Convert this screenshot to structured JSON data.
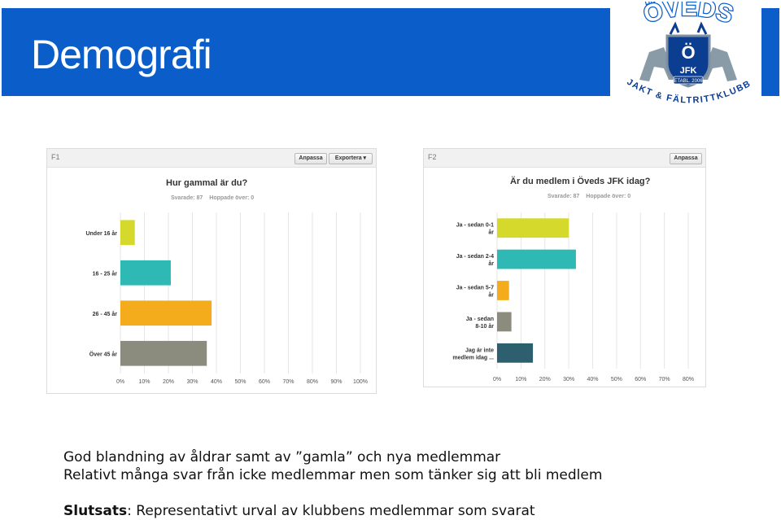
{
  "header": {
    "title": "Demografi"
  },
  "logo": {
    "top_text": "ÖVEDS",
    "shield_letters": "Ö",
    "shield_text": "JFK",
    "established": "ETABL. 2006",
    "ring_text": "JAKT & FÄLTRITTKLUBB"
  },
  "panels": [
    {
      "id": "F1",
      "customize_label": "Anpassa",
      "export_label": "Exportera ▾",
      "question": "Hur gammal är du?",
      "answered": "Svarade: 87",
      "skipped": "Hoppade över: 0"
    },
    {
      "id": "F2",
      "customize_label": "Anpassa",
      "question": "Är du medlem i Öveds JFK idag?",
      "answered": "Svarade: 87",
      "skipped": "Hoppade över: 0"
    }
  ],
  "chart_data": [
    {
      "type": "bar",
      "orientation": "horizontal",
      "title": "Hur gammal är du?",
      "categories": [
        "Under 16 år",
        "16 - 25 år",
        "26 - 45 år",
        "Över 45 år"
      ],
      "values": [
        6,
        21,
        38,
        36
      ],
      "unit": "%",
      "xlim": [
        0,
        100
      ],
      "ticks": [
        "0%",
        "10%",
        "20%",
        "30%",
        "40%",
        "50%",
        "60%",
        "70%",
        "80%",
        "90%",
        "100%"
      ],
      "colors": [
        "#d4d92b",
        "#2fb9b5",
        "#f4ac1c",
        "#8c8c7e"
      ],
      "grid": true
    },
    {
      "type": "bar",
      "orientation": "horizontal",
      "title": "Är du medlem i Öveds JFK idag?",
      "categories": [
        "Ja - sedan 0-1 år",
        "Ja - sedan 2-4 år",
        "Ja - sedan 5-7 år",
        "Ja - sedan 8-10 år",
        "Jag är inte medlem idag ..."
      ],
      "category_lines": [
        [
          "Ja - sedan 0-1",
          "år"
        ],
        [
          "Ja - sedan 2-4",
          "år"
        ],
        [
          "Ja - sedan 5-7",
          "år"
        ],
        [
          "Ja - sedan",
          "8-10 år"
        ],
        [
          "Jag är inte",
          "medlem idag ..."
        ]
      ],
      "values": [
        30,
        33,
        5,
        6,
        15
      ],
      "unit": "%",
      "xlim": [
        0,
        80
      ],
      "ticks": [
        "0%",
        "10%",
        "20%",
        "30%",
        "40%",
        "50%",
        "60%",
        "70%",
        "80%"
      ],
      "colors": [
        "#d4d92b",
        "#2fb9b5",
        "#f4ac1c",
        "#8c8c7e",
        "#2e5f6e"
      ],
      "grid": true
    }
  ],
  "footer": {
    "line1": "God blandning av åldrar samt av ”gamla” och nya medlemmar",
    "line2": "Relativt många svar från icke medlemmar men som tänker sig att bli medlem",
    "conclusion_label": "Slutsats",
    "conclusion_text": ": Representativt urval av klubbens medlemmar som svarat"
  }
}
